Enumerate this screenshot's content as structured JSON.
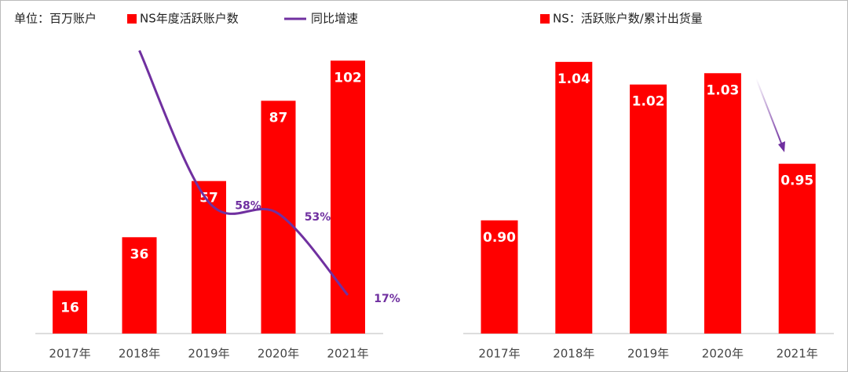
{
  "chart_data": [
    {
      "type": "bar",
      "unit_label": "单位：百万账户",
      "categories": [
        "2017年",
        "2018年",
        "2019年",
        "2020年",
        "2021年"
      ],
      "ylim": [
        0,
        110
      ],
      "y2lim": [
        0,
        130
      ],
      "series": [
        {
          "name": "NS年度活跃账户数",
          "color": "#ff0000",
          "values": [
            16,
            36,
            57,
            87,
            102
          ]
        },
        {
          "name": "同比增速",
          "type": "line",
          "axis": "y2",
          "color": "#7030a0",
          "values": [
            null,
            125,
            58,
            53,
            17
          ],
          "value_labels": [
            null,
            null,
            "58%",
            "53%",
            "17%"
          ]
        }
      ]
    },
    {
      "type": "bar",
      "categories": [
        "2017年",
        "2018年",
        "2019年",
        "2020年",
        "2021年"
      ],
      "ylim": [
        0.8,
        1.06
      ],
      "series": [
        {
          "name": "NS：活跃账户数/累计出货量",
          "color": "#ff0000",
          "values": [
            0.9,
            1.04,
            1.02,
            1.03,
            0.95
          ],
          "value_labels": [
            "0.90",
            "1.04",
            "1.02",
            "1.03",
            "0.95"
          ]
        }
      ]
    }
  ]
}
